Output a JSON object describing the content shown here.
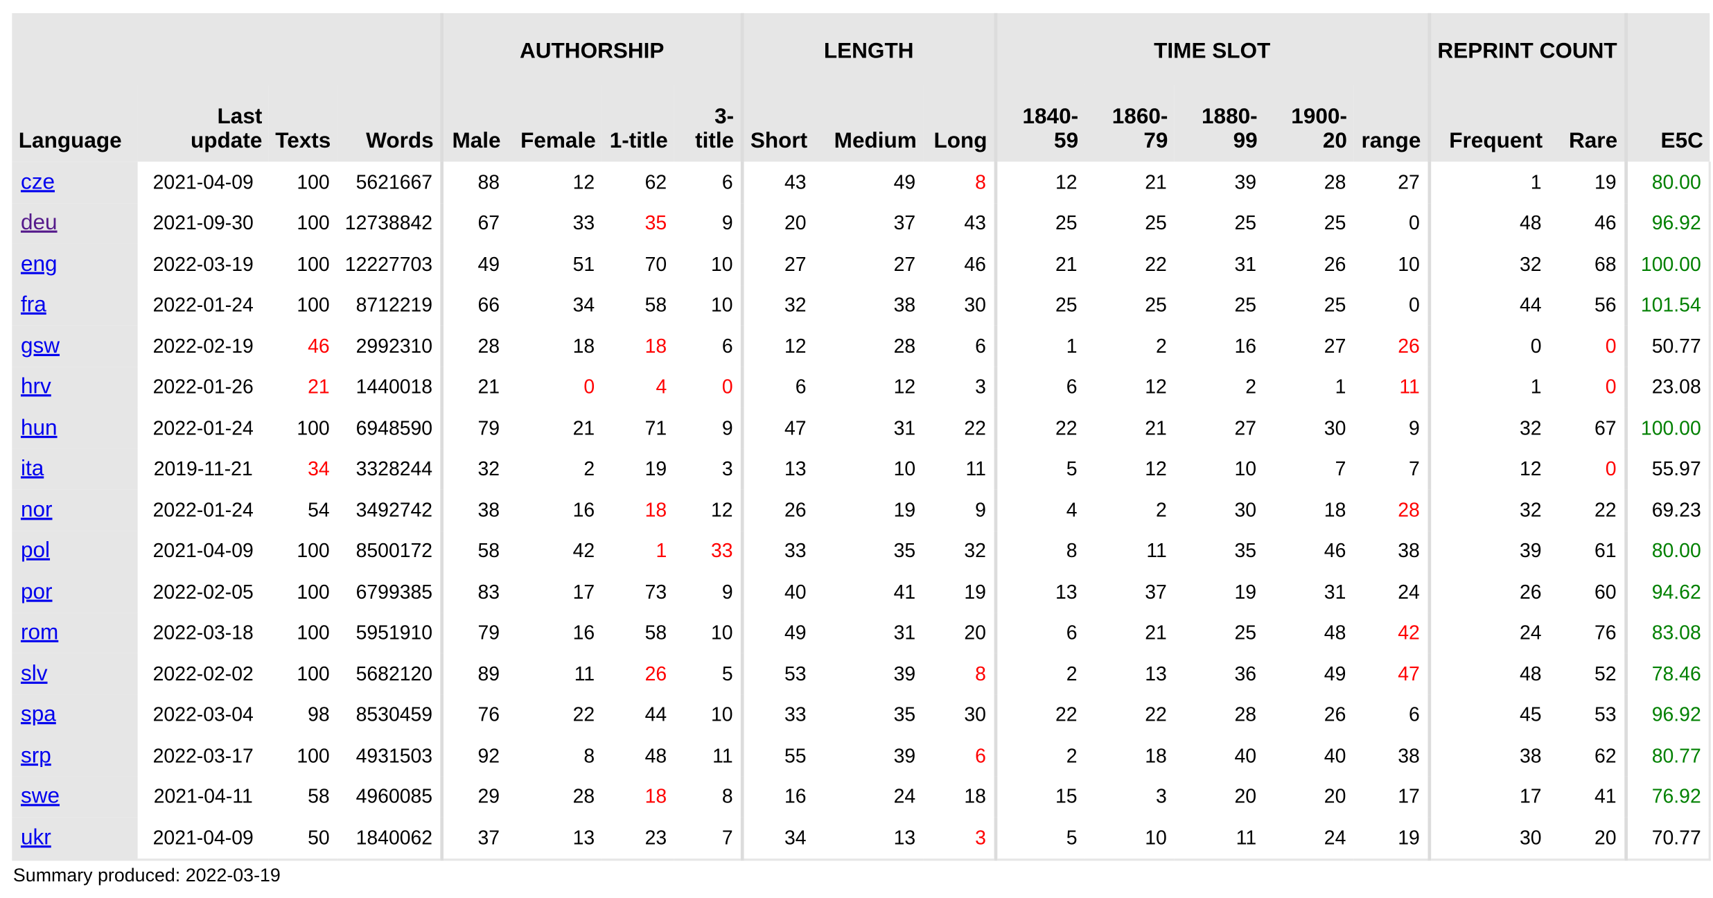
{
  "headers": {
    "groups": {
      "authorship": "AUTHORSHIP",
      "length": "LENGTH",
      "time_slot": "TIME SLOT",
      "reprint_count": "REPRINT COUNT"
    },
    "columns": {
      "language": "Language",
      "last_update": "Last update",
      "texts": "Texts",
      "words": "Words",
      "male": "Male",
      "female": "Female",
      "one_title": "1-title",
      "three_title": "3-title",
      "short": "Short",
      "medium": "Medium",
      "long": "Long",
      "t1840_59": "1840-59",
      "t1860_79": "1860-79",
      "t1880_99": "1880-99",
      "t1900_20": "1900-20",
      "range": "range",
      "frequent": "Frequent",
      "rare": "Rare",
      "e5c": "E5C"
    }
  },
  "colors": {
    "warning": "#ff0000",
    "good": "#008000",
    "link": "#0000ee",
    "visited_link": "#551a8b",
    "header_bg": "#e6e6e6"
  },
  "rows": [
    {
      "lang": "cze",
      "visited": false,
      "last_update": "2021-04-09",
      "texts": "100",
      "words": "5621667",
      "male": "88",
      "female": "12",
      "one_title": "62",
      "three_title": "6",
      "short": "43",
      "medium": "49",
      "long": "8",
      "t1840_59": "12",
      "t1860_79": "21",
      "t1880_99": "39",
      "t1900_20": "28",
      "range": "27",
      "frequent": "1",
      "rare": "19",
      "e5c": "80.00",
      "red": [
        "long"
      ],
      "e5c_status": "good"
    },
    {
      "lang": "deu",
      "visited": true,
      "last_update": "2021-09-30",
      "texts": "100",
      "words": "12738842",
      "male": "67",
      "female": "33",
      "one_title": "35",
      "three_title": "9",
      "short": "20",
      "medium": "37",
      "long": "43",
      "t1840_59": "25",
      "t1860_79": "25",
      "t1880_99": "25",
      "t1900_20": "25",
      "range": "0",
      "frequent": "48",
      "rare": "46",
      "e5c": "96.92",
      "red": [
        "one_title"
      ],
      "e5c_status": "good"
    },
    {
      "lang": "eng",
      "visited": false,
      "last_update": "2022-03-19",
      "texts": "100",
      "words": "12227703",
      "male": "49",
      "female": "51",
      "one_title": "70",
      "three_title": "10",
      "short": "27",
      "medium": "27",
      "long": "46",
      "t1840_59": "21",
      "t1860_79": "22",
      "t1880_99": "31",
      "t1900_20": "26",
      "range": "10",
      "frequent": "32",
      "rare": "68",
      "e5c": "100.00",
      "red": [],
      "e5c_status": "good"
    },
    {
      "lang": "fra",
      "visited": false,
      "last_update": "2022-01-24",
      "texts": "100",
      "words": "8712219",
      "male": "66",
      "female": "34",
      "one_title": "58",
      "three_title": "10",
      "short": "32",
      "medium": "38",
      "long": "30",
      "t1840_59": "25",
      "t1860_79": "25",
      "t1880_99": "25",
      "t1900_20": "25",
      "range": "0",
      "frequent": "44",
      "rare": "56",
      "e5c": "101.54",
      "red": [],
      "e5c_status": "good"
    },
    {
      "lang": "gsw",
      "visited": false,
      "last_update": "2022-02-19",
      "texts": "46",
      "words": "2992310",
      "male": "28",
      "female": "18",
      "one_title": "18",
      "three_title": "6",
      "short": "12",
      "medium": "28",
      "long": "6",
      "t1840_59": "1",
      "t1860_79": "2",
      "t1880_99": "16",
      "t1900_20": "27",
      "range": "26",
      "frequent": "0",
      "rare": "0",
      "e5c": "50.77",
      "red": [
        "texts",
        "one_title",
        "range",
        "rare"
      ],
      "e5c_status": "normal"
    },
    {
      "lang": "hrv",
      "visited": false,
      "last_update": "2022-01-26",
      "texts": "21",
      "words": "1440018",
      "male": "21",
      "female": "0",
      "one_title": "4",
      "three_title": "0",
      "short": "6",
      "medium": "12",
      "long": "3",
      "t1840_59": "6",
      "t1860_79": "12",
      "t1880_99": "2",
      "t1900_20": "1",
      "range": "11",
      "frequent": "1",
      "rare": "0",
      "e5c": "23.08",
      "red": [
        "texts",
        "female",
        "one_title",
        "three_title",
        "range",
        "rare"
      ],
      "e5c_status": "normal"
    },
    {
      "lang": "hun",
      "visited": false,
      "last_update": "2022-01-24",
      "texts": "100",
      "words": "6948590",
      "male": "79",
      "female": "21",
      "one_title": "71",
      "three_title": "9",
      "short": "47",
      "medium": "31",
      "long": "22",
      "t1840_59": "22",
      "t1860_79": "21",
      "t1880_99": "27",
      "t1900_20": "30",
      "range": "9",
      "frequent": "32",
      "rare": "67",
      "e5c": "100.00",
      "red": [],
      "e5c_status": "good"
    },
    {
      "lang": "ita",
      "visited": false,
      "last_update": "2019-11-21",
      "texts": "34",
      "words": "3328244",
      "male": "32",
      "female": "2",
      "one_title": "19",
      "three_title": "3",
      "short": "13",
      "medium": "10",
      "long": "11",
      "t1840_59": "5",
      "t1860_79": "12",
      "t1880_99": "10",
      "t1900_20": "7",
      "range": "7",
      "frequent": "12",
      "rare": "0",
      "e5c": "55.97",
      "red": [
        "texts",
        "rare"
      ],
      "e5c_status": "normal"
    },
    {
      "lang": "nor",
      "visited": false,
      "last_update": "2022-01-24",
      "texts": "54",
      "words": "3492742",
      "male": "38",
      "female": "16",
      "one_title": "18",
      "three_title": "12",
      "short": "26",
      "medium": "19",
      "long": "9",
      "t1840_59": "4",
      "t1860_79": "2",
      "t1880_99": "30",
      "t1900_20": "18",
      "range": "28",
      "frequent": "32",
      "rare": "22",
      "e5c": "69.23",
      "red": [
        "one_title",
        "range"
      ],
      "e5c_status": "normal"
    },
    {
      "lang": "pol",
      "visited": false,
      "last_update": "2021-04-09",
      "texts": "100",
      "words": "8500172",
      "male": "58",
      "female": "42",
      "one_title": "1",
      "three_title": "33",
      "short": "33",
      "medium": "35",
      "long": "32",
      "t1840_59": "8",
      "t1860_79": "11",
      "t1880_99": "35",
      "t1900_20": "46",
      "range": "38",
      "frequent": "39",
      "rare": "61",
      "e5c": "80.00",
      "red": [
        "one_title",
        "three_title"
      ],
      "e5c_status": "good"
    },
    {
      "lang": "por",
      "visited": false,
      "last_update": "2022-02-05",
      "texts": "100",
      "words": "6799385",
      "male": "83",
      "female": "17",
      "one_title": "73",
      "three_title": "9",
      "short": "40",
      "medium": "41",
      "long": "19",
      "t1840_59": "13",
      "t1860_79": "37",
      "t1880_99": "19",
      "t1900_20": "31",
      "range": "24",
      "frequent": "26",
      "rare": "60",
      "e5c": "94.62",
      "red": [],
      "e5c_status": "good"
    },
    {
      "lang": "rom",
      "visited": false,
      "last_update": "2022-03-18",
      "texts": "100",
      "words": "5951910",
      "male": "79",
      "female": "16",
      "one_title": "58",
      "three_title": "10",
      "short": "49",
      "medium": "31",
      "long": "20",
      "t1840_59": "6",
      "t1860_79": "21",
      "t1880_99": "25",
      "t1900_20": "48",
      "range": "42",
      "frequent": "24",
      "rare": "76",
      "e5c": "83.08",
      "red": [
        "range"
      ],
      "e5c_status": "good"
    },
    {
      "lang": "slv",
      "visited": false,
      "last_update": "2022-02-02",
      "texts": "100",
      "words": "5682120",
      "male": "89",
      "female": "11",
      "one_title": "26",
      "three_title": "5",
      "short": "53",
      "medium": "39",
      "long": "8",
      "t1840_59": "2",
      "t1860_79": "13",
      "t1880_99": "36",
      "t1900_20": "49",
      "range": "47",
      "frequent": "48",
      "rare": "52",
      "e5c": "78.46",
      "red": [
        "one_title",
        "long",
        "range"
      ],
      "e5c_status": "good"
    },
    {
      "lang": "spa",
      "visited": false,
      "last_update": "2022-03-04",
      "texts": "98",
      "words": "8530459",
      "male": "76",
      "female": "22",
      "one_title": "44",
      "three_title": "10",
      "short": "33",
      "medium": "35",
      "long": "30",
      "t1840_59": "22",
      "t1860_79": "22",
      "t1880_99": "28",
      "t1900_20": "26",
      "range": "6",
      "frequent": "45",
      "rare": "53",
      "e5c": "96.92",
      "red": [],
      "e5c_status": "good"
    },
    {
      "lang": "srp",
      "visited": false,
      "last_update": "2022-03-17",
      "texts": "100",
      "words": "4931503",
      "male": "92",
      "female": "8",
      "one_title": "48",
      "three_title": "11",
      "short": "55",
      "medium": "39",
      "long": "6",
      "t1840_59": "2",
      "t1860_79": "18",
      "t1880_99": "40",
      "t1900_20": "40",
      "range": "38",
      "frequent": "38",
      "rare": "62",
      "e5c": "80.77",
      "red": [
        "long"
      ],
      "e5c_status": "good"
    },
    {
      "lang": "swe",
      "visited": false,
      "last_update": "2021-04-11",
      "texts": "58",
      "words": "4960085",
      "male": "29",
      "female": "28",
      "one_title": "18",
      "three_title": "8",
      "short": "16",
      "medium": "24",
      "long": "18",
      "t1840_59": "15",
      "t1860_79": "3",
      "t1880_99": "20",
      "t1900_20": "20",
      "range": "17",
      "frequent": "17",
      "rare": "41",
      "e5c": "76.92",
      "red": [
        "one_title"
      ],
      "e5c_status": "good"
    },
    {
      "lang": "ukr",
      "visited": false,
      "last_update": "2021-04-09",
      "texts": "50",
      "words": "1840062",
      "male": "37",
      "female": "13",
      "one_title": "23",
      "three_title": "7",
      "short": "34",
      "medium": "13",
      "long": "3",
      "t1840_59": "5",
      "t1860_79": "10",
      "t1880_99": "11",
      "t1900_20": "24",
      "range": "19",
      "frequent": "30",
      "rare": "20",
      "e5c": "70.77",
      "red": [
        "long"
      ],
      "e5c_status": "normal"
    }
  ],
  "footer": {
    "label": "Summary produced:",
    "date": "2022-03-19"
  }
}
